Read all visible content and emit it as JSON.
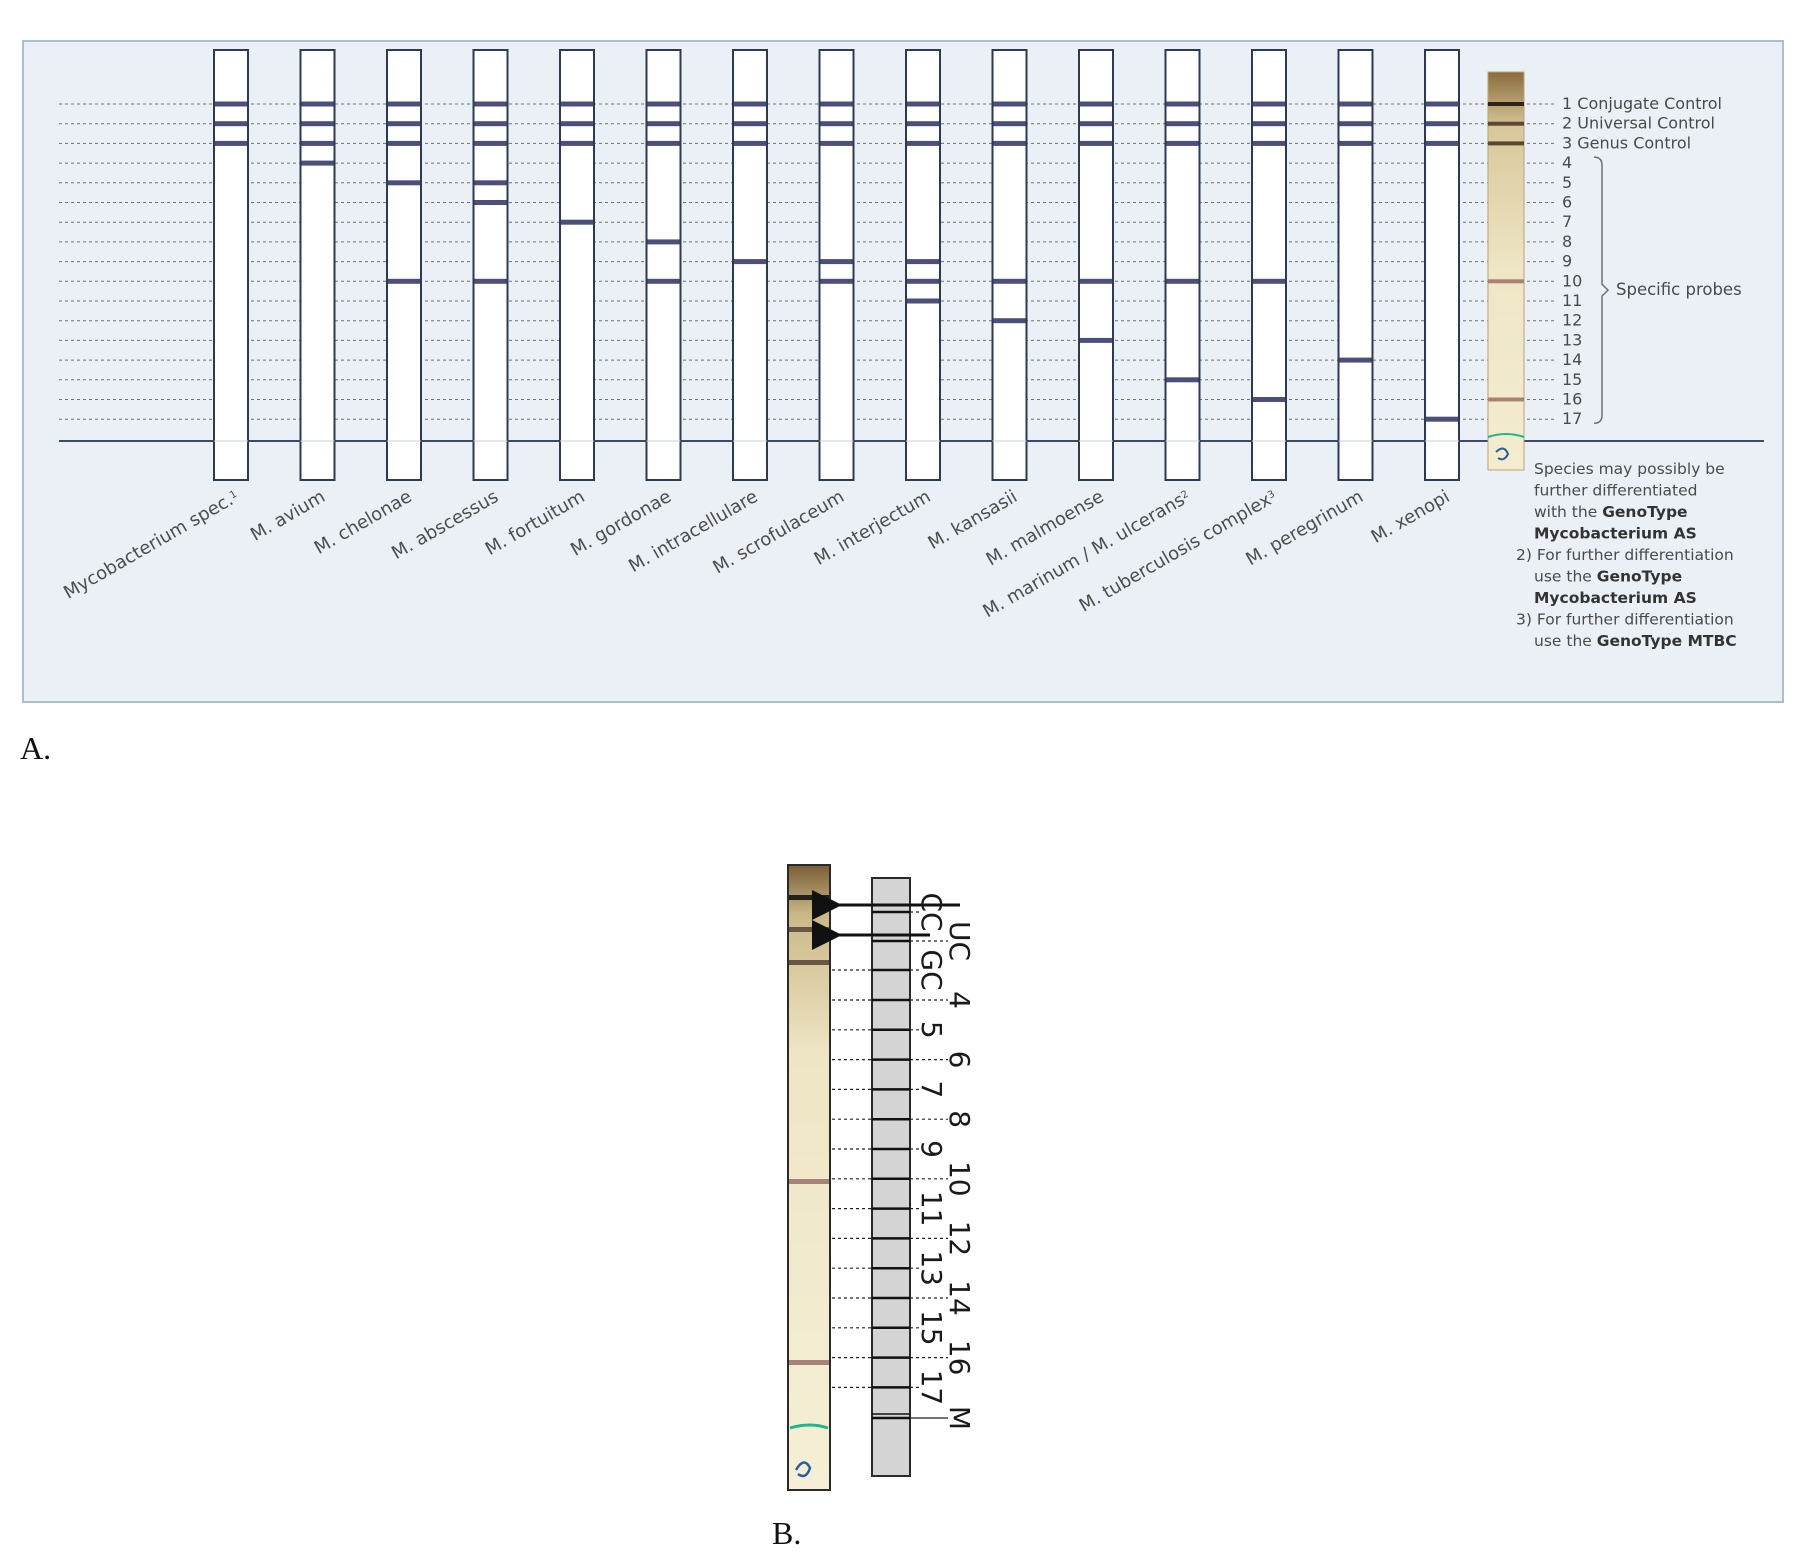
{
  "panel_a": {
    "caption": "A.",
    "strips": [
      {
        "name": "Mycobacterium spec.",
        "sup": "1",
        "bands": [
          1,
          2,
          3
        ]
      },
      {
        "name": "M. avium",
        "sup": "",
        "bands": [
          1,
          2,
          3,
          4
        ]
      },
      {
        "name": "M. chelonae",
        "sup": "",
        "bands": [
          1,
          2,
          3,
          5,
          10
        ]
      },
      {
        "name": "M. abscessus",
        "sup": "",
        "bands": [
          1,
          2,
          3,
          5,
          6,
          10
        ]
      },
      {
        "name": "M. fortuitum",
        "sup": "",
        "bands": [
          1,
          2,
          3,
          7
        ]
      },
      {
        "name": "M. gordonae",
        "sup": "",
        "bands": [
          1,
          2,
          3,
          8,
          10
        ]
      },
      {
        "name": "M. intracellulare",
        "sup": "",
        "bands": [
          1,
          2,
          3,
          9
        ]
      },
      {
        "name": "M. scrofulaceum",
        "sup": "",
        "bands": [
          1,
          2,
          3,
          9,
          10
        ]
      },
      {
        "name": "M. interjectum",
        "sup": "",
        "bands": [
          1,
          2,
          3,
          9,
          10,
          11
        ]
      },
      {
        "name": "M. kansasii",
        "sup": "",
        "bands": [
          1,
          2,
          3,
          10,
          12
        ]
      },
      {
        "name": "M. malmoense",
        "sup": "",
        "bands": [
          1,
          2,
          3,
          10,
          13
        ]
      },
      {
        "name": "M. marinum / M. ulcerans",
        "sup": "2",
        "bands": [
          1,
          2,
          3,
          10,
          15
        ]
      },
      {
        "name": "M. tuberculosis complex",
        "sup": "3",
        "bands": [
          1,
          2,
          3,
          10,
          16
        ]
      },
      {
        "name": "M. peregrinum",
        "sup": "",
        "bands": [
          1,
          2,
          3,
          14
        ]
      },
      {
        "name": "M. xenopi",
        "sup": "",
        "bands": [
          1,
          2,
          3,
          17
        ]
      }
    ],
    "real_strip_bands": [
      1,
      2,
      3,
      10,
      16
    ],
    "position_labels": [
      "1 Conjugate Control",
      "2 Universal Control",
      "3 Genus Control",
      "4",
      "5",
      "6",
      "7",
      "8",
      "9",
      "10",
      "11",
      "12",
      "13",
      "14",
      "15",
      "16",
      "17"
    ],
    "bracket_label": "Specific probes",
    "notes": [
      [
        {
          "t": "Species may possibly be",
          "b": false
        }
      ],
      [
        {
          "t": "further differentiated",
          "b": false
        }
      ],
      [
        {
          "t": "with the ",
          "b": false
        },
        {
          "t": "GenoType",
          "b": true
        }
      ],
      [
        {
          "t": "Mycobacterium AS",
          "b": true
        }
      ],
      [
        {
          "t": "2) ",
          "b": false
        },
        {
          "t": "For further differentiation",
          "b": false
        }
      ],
      [
        {
          "t": "use the ",
          "b": false
        },
        {
          "t": "GenoType",
          "b": true
        }
      ],
      [
        {
          "t": "Mycobacterium AS",
          "b": true
        }
      ],
      [
        {
          "t": "3) ",
          "b": false
        },
        {
          "t": "For further differentiation",
          "b": false
        }
      ],
      [
        {
          "t": "use the ",
          "b": false
        },
        {
          "t": "GenoType MTBC",
          "b": true
        }
      ]
    ],
    "colors": {
      "band": "#4b4f7a",
      "background": "#eaf0f6",
      "border": "#a9bfd3"
    }
  },
  "panel_b": {
    "caption": "B.",
    "labels_rotated": [
      "CC",
      "UC",
      "GC",
      "4",
      "5",
      "6",
      "7",
      "8",
      "9",
      "10",
      "11",
      "12",
      "13",
      "14",
      "15",
      "16",
      "17",
      "M"
    ],
    "real_strip_bands": [
      "CC",
      "UC",
      "GC",
      "10",
      "16"
    ]
  }
}
